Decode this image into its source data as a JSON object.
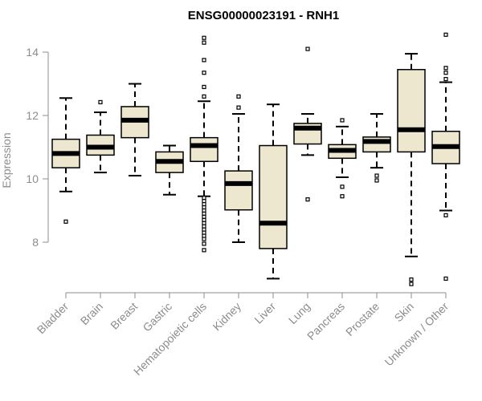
{
  "chart_data": {
    "type": "boxplot",
    "title": "ENSG00000023191 - RNH1",
    "xlabel": "",
    "ylabel": "Expression",
    "ylim": [
      6.5,
      15
    ],
    "yticks": [
      8,
      10,
      12,
      14
    ],
    "grid": false,
    "legend": "none",
    "box_fill": "#ede7cf",
    "box_stroke": "#000000",
    "median_stroke": "#000000",
    "axis_color": "#8c8c8c",
    "categories": [
      "Bladder",
      "Brain",
      "Breast",
      "Gastric",
      "Hematopoietic cells",
      "Kidney",
      "Liver",
      "Lung",
      "Pancreas",
      "Prostate",
      "Skin",
      "Unknown / Other"
    ],
    "boxes": [
      {
        "category": "Bladder",
        "whisker_low": 9.6,
        "q1": 10.35,
        "median": 10.8,
        "q3": 11.25,
        "whisker_high": 12.55,
        "outliers": [
          8.65
        ]
      },
      {
        "category": "Brain",
        "whisker_low": 10.2,
        "q1": 10.75,
        "median": 11.0,
        "q3": 11.38,
        "whisker_high": 12.1,
        "outliers": [
          12.42
        ]
      },
      {
        "category": "Breast",
        "whisker_low": 10.1,
        "q1": 11.3,
        "median": 11.85,
        "q3": 12.28,
        "whisker_high": 13.0,
        "outliers": []
      },
      {
        "category": "Gastric",
        "whisker_low": 9.5,
        "q1": 10.2,
        "median": 10.55,
        "q3": 10.85,
        "whisker_high": 11.05,
        "outliers": []
      },
      {
        "category": "Hematopoietic cells",
        "whisker_low": 9.45,
        "q1": 10.55,
        "median": 11.05,
        "q3": 11.3,
        "whisker_high": 12.45,
        "outliers": [
          14.45,
          14.3,
          13.75,
          13.35,
          12.9,
          12.6,
          9.4,
          9.3,
          9.2,
          9.1,
          9.0,
          8.9,
          8.8,
          8.7,
          8.6,
          8.5,
          8.4,
          8.3,
          8.2,
          8.1,
          7.95,
          7.75
        ]
      },
      {
        "category": "Kidney",
        "whisker_low": 8.0,
        "q1": 9.02,
        "median": 9.85,
        "q3": 10.25,
        "whisker_high": 12.05,
        "outliers": [
          12.6,
          12.25
        ]
      },
      {
        "category": "Liver",
        "whisker_low": 6.85,
        "q1": 7.8,
        "median": 8.6,
        "q3": 11.05,
        "whisker_high": 12.35,
        "outliers": []
      },
      {
        "category": "Lung",
        "whisker_low": 10.75,
        "q1": 11.1,
        "median": 11.6,
        "q3": 11.75,
        "whisker_high": 12.05,
        "outliers": [
          14.1,
          9.35
        ]
      },
      {
        "category": "Pancreas",
        "whisker_low": 10.05,
        "q1": 10.65,
        "median": 10.9,
        "q3": 11.08,
        "whisker_high": 11.65,
        "outliers": [
          11.85,
          9.75,
          9.45
        ]
      },
      {
        "category": "Prostate",
        "whisker_low": 10.35,
        "q1": 10.85,
        "median": 11.18,
        "q3": 11.32,
        "whisker_high": 12.05,
        "outliers": [
          10.1,
          9.95
        ]
      },
      {
        "category": "Skin",
        "whisker_low": 7.55,
        "q1": 10.85,
        "median": 11.55,
        "q3": 13.45,
        "whisker_high": 13.95,
        "outliers": [
          6.82,
          6.68
        ]
      },
      {
        "category": "Unknown / Other",
        "whisker_low": 9.0,
        "q1": 10.48,
        "median": 11.02,
        "q3": 11.5,
        "whisker_high": 13.05,
        "outliers": [
          14.55,
          13.5,
          13.35,
          13.15,
          8.85,
          6.85
        ]
      }
    ]
  }
}
